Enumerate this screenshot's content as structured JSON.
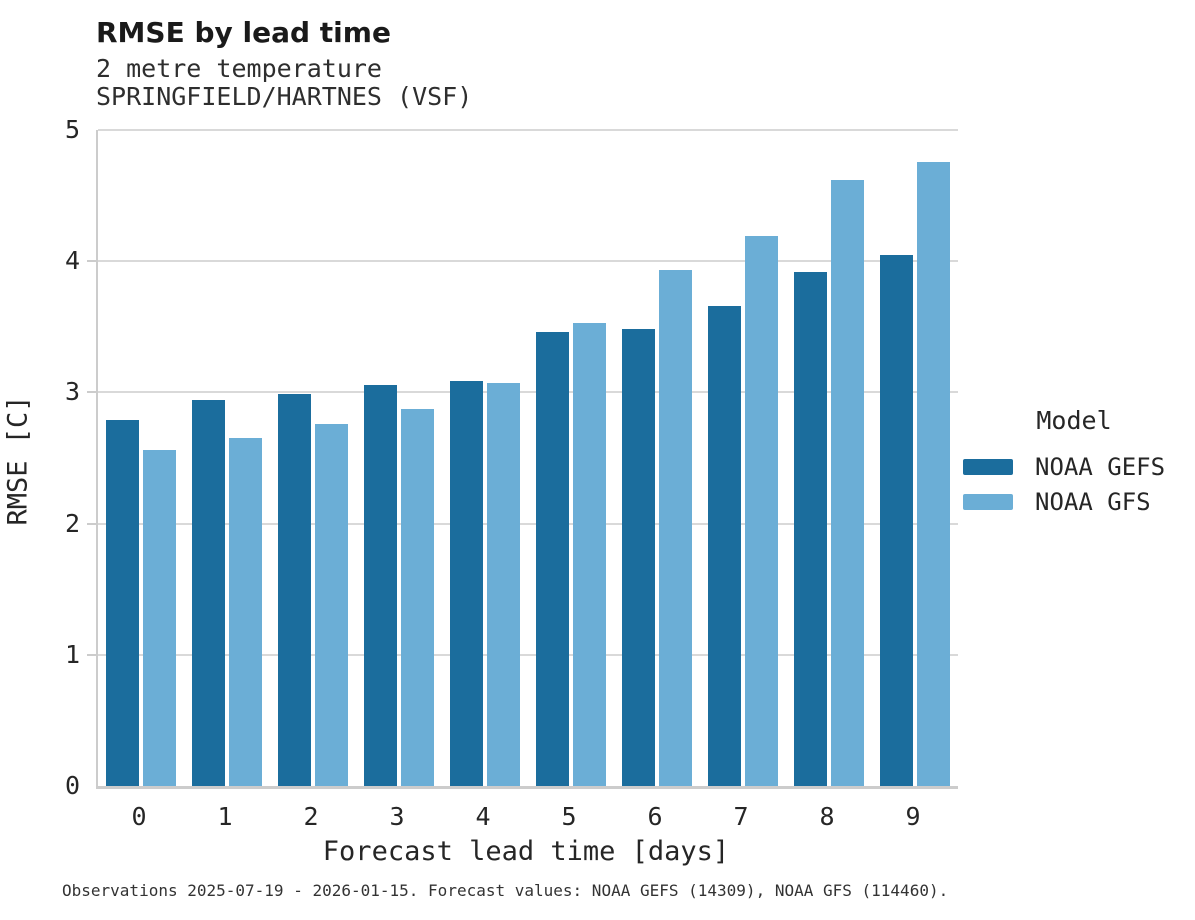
{
  "chart_data": {
    "type": "bar",
    "title": "RMSE by lead time",
    "subtitle_lines": [
      "2 metre temperature",
      "SPRINGFIELD/HARTNES (VSF)"
    ],
    "xlabel": "Forecast lead time [days]",
    "ylabel": "RMSE [C]",
    "categories": [
      "0",
      "1",
      "2",
      "3",
      "4",
      "5",
      "6",
      "7",
      "8",
      "9"
    ],
    "series": [
      {
        "name": "NOAA GEFS",
        "color": "#1b6d9d",
        "values": [
          2.79,
          2.94,
          2.99,
          3.06,
          3.09,
          3.46,
          3.48,
          3.66,
          3.92,
          4.05
        ]
      },
      {
        "name": "NOAA GFS",
        "color": "#6baed6",
        "values": [
          2.56,
          2.65,
          2.76,
          2.87,
          3.07,
          3.53,
          3.93,
          4.19,
          4.62,
          4.76
        ]
      }
    ],
    "ylim": [
      0,
      5
    ],
    "yticks": [
      0,
      1,
      2,
      3,
      4,
      5
    ],
    "grid": true,
    "legend_position": "right-center"
  },
  "legend": {
    "title": "Model",
    "entries": [
      {
        "label": "NOAA GEFS",
        "color": "#1b6d9d"
      },
      {
        "label": "NOAA GFS",
        "color": "#6baed6"
      }
    ]
  },
  "caption": "Observations 2025-07-19 - 2026-01-15. Forecast values: NOAA GEFS (14309), NOAA GFS (114460).",
  "colors": {
    "grid": "#d9d9d9",
    "spine": "#cccccc",
    "text": "#262626"
  }
}
